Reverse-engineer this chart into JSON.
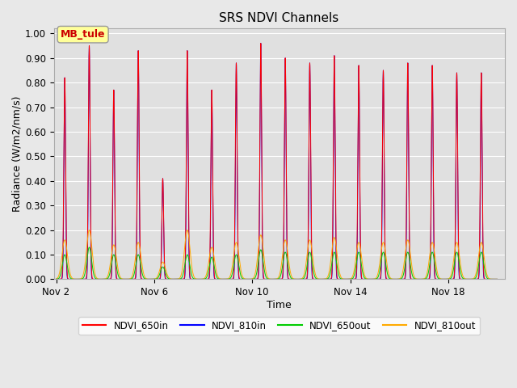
{
  "title": "SRS NDVI Channels",
  "xlabel": "Time",
  "ylabel": "Radiance (W/m2/nm/s)",
  "ylim": [
    0.0,
    1.02
  ],
  "yticks": [
    0.0,
    0.1,
    0.2,
    0.3,
    0.4,
    0.5,
    0.6,
    0.7,
    0.8,
    0.9,
    1.0
  ],
  "bg_color": "#e8e8e8",
  "plot_bg_color": "#e0e0e0",
  "legend_entries": [
    "NDVI_650in",
    "NDVI_810in",
    "NDVI_650out",
    "NDVI_810out"
  ],
  "legend_colors": [
    "#ff0000",
    "#0000ff",
    "#00cc00",
    "#ffaa00"
  ],
  "annotation_text": "MB_tule",
  "annotation_color": "#cc0000",
  "annotation_bg": "#ffff99",
  "num_days": 18,
  "ndvi_650in_peaks": [
    0.82,
    0.95,
    0.77,
    0.93,
    0.41,
    0.93,
    0.77,
    0.88,
    0.96,
    0.9,
    0.88,
    0.91,
    0.87,
    0.85,
    0.88,
    0.87,
    0.84,
    0.84
  ],
  "ndvi_810in_peaks": [
    0.82,
    0.95,
    0.77,
    0.93,
    0.41,
    0.93,
    0.77,
    0.88,
    0.96,
    0.9,
    0.88,
    0.91,
    0.87,
    0.85,
    0.88,
    0.87,
    0.84,
    0.84
  ],
  "ndvi_650out_peaks": [
    0.1,
    0.13,
    0.1,
    0.1,
    0.05,
    0.1,
    0.09,
    0.1,
    0.12,
    0.11,
    0.11,
    0.11,
    0.11,
    0.11,
    0.11,
    0.11,
    0.11,
    0.11
  ],
  "ndvi_810out_peaks": [
    0.16,
    0.2,
    0.14,
    0.15,
    0.07,
    0.2,
    0.13,
    0.15,
    0.18,
    0.16,
    0.16,
    0.17,
    0.15,
    0.15,
    0.16,
    0.15,
    0.15,
    0.15
  ],
  "xtick_day_offsets": [
    0,
    4,
    8,
    12,
    16
  ],
  "xtick_labels": [
    "Nov 2",
    "Nov 6",
    "Nov 10",
    "Nov 14",
    "Nov 18"
  ]
}
